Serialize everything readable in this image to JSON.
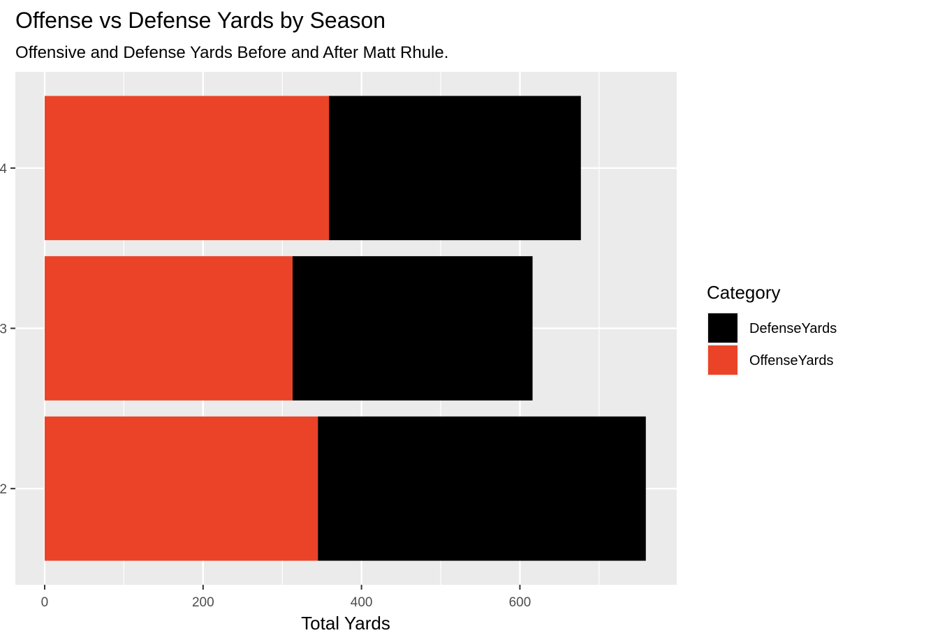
{
  "chart_data": {
    "type": "bar",
    "orientation": "horizontal",
    "stacked": true,
    "title": "Offense vs Defense Yards by Season",
    "subtitle": "Offensive and Defense Yards Before and After Matt Rhule.",
    "xlabel": "Total Yards",
    "ylabel": "",
    "categories": [
      "2",
      "3",
      "4"
    ],
    "series": [
      {
        "name": "OffenseYards",
        "color": "#EA4328",
        "values": [
          345,
          313,
          359
        ]
      },
      {
        "name": "DefenseYards",
        "color": "#000000",
        "values": [
          414,
          303,
          318
        ]
      }
    ],
    "xlim": [
      -37,
      798
    ],
    "xticks": [
      0,
      200,
      400,
      600
    ],
    "legend": {
      "title": "Category",
      "entries": [
        "DefenseYards",
        "OffenseYards"
      ],
      "position": "right"
    },
    "panel_background": "#EBEBEB",
    "grid": true
  }
}
